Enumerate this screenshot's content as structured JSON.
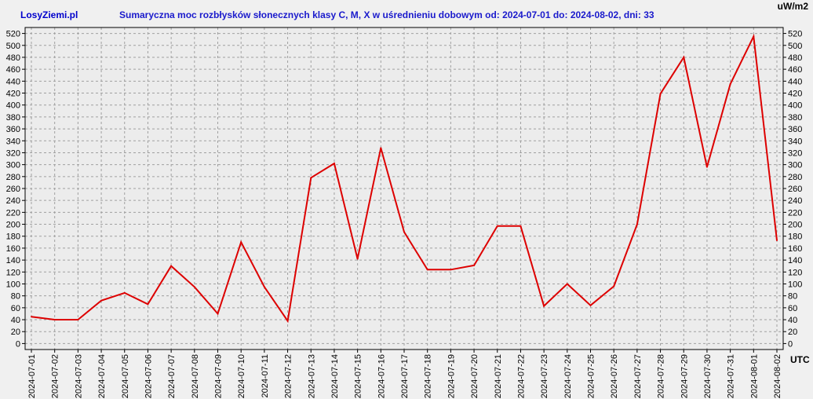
{
  "header": {
    "brand": "LosyZiemi.pl",
    "title": "Sumaryczna moc rozbłysków słonecznych klasy C, M, X w uśrednieniu dobowym od: 2024-07-01 do: 2024-08-02, dni: 33",
    "unit": "uW/m2",
    "x_unit": "UTC"
  },
  "colors": {
    "line": "#dd0000",
    "plot_bg": "#ececec",
    "grid": "#a0a0a0",
    "title": "#1a1acc",
    "brand": "#0000cc"
  },
  "chart_data": {
    "type": "line",
    "title": "Sumaryczna moc rozbłysków słonecznych klasy C, M, X w uśrednieniu dobowym od: 2024-07-01 do: 2024-08-02, dni: 33",
    "xlabel": "UTC",
    "ylabel": "uW/m2",
    "ylim": [
      -10,
      530
    ],
    "y_ticks": [
      0,
      20,
      40,
      60,
      80,
      100,
      120,
      140,
      160,
      180,
      200,
      220,
      240,
      260,
      280,
      300,
      320,
      340,
      360,
      380,
      400,
      420,
      440,
      460,
      480,
      500,
      520
    ],
    "grid": true,
    "x": [
      "2024-07-01",
      "2024-07-02",
      "2024-07-03",
      "2024-07-04",
      "2024-07-05",
      "2024-07-06",
      "2024-07-07",
      "2024-07-08",
      "2024-07-09",
      "2024-07-10",
      "2024-07-11",
      "2024-07-12",
      "2024-07-13",
      "2024-07-14",
      "2024-07-15",
      "2024-07-16",
      "2024-07-17",
      "2024-07-18",
      "2024-07-19",
      "2024-07-20",
      "2024-07-21",
      "2024-07-22",
      "2024-07-23",
      "2024-07-24",
      "2024-07-25",
      "2024-07-26",
      "2024-07-27",
      "2024-07-28",
      "2024-07-29",
      "2024-07-30",
      "2024-07-31",
      "2024-08-01",
      "2024-08-02"
    ],
    "series": [
      {
        "values": [
          45,
          40,
          40,
          72,
          85,
          66,
          130,
          95,
          50,
          170,
          95,
          38,
          278,
          302,
          142,
          328,
          187,
          124,
          124,
          131,
          197,
          197,
          63,
          100,
          64,
          96,
          200,
          419,
          480,
          296,
          435,
          515,
          173
        ]
      }
    ]
  }
}
